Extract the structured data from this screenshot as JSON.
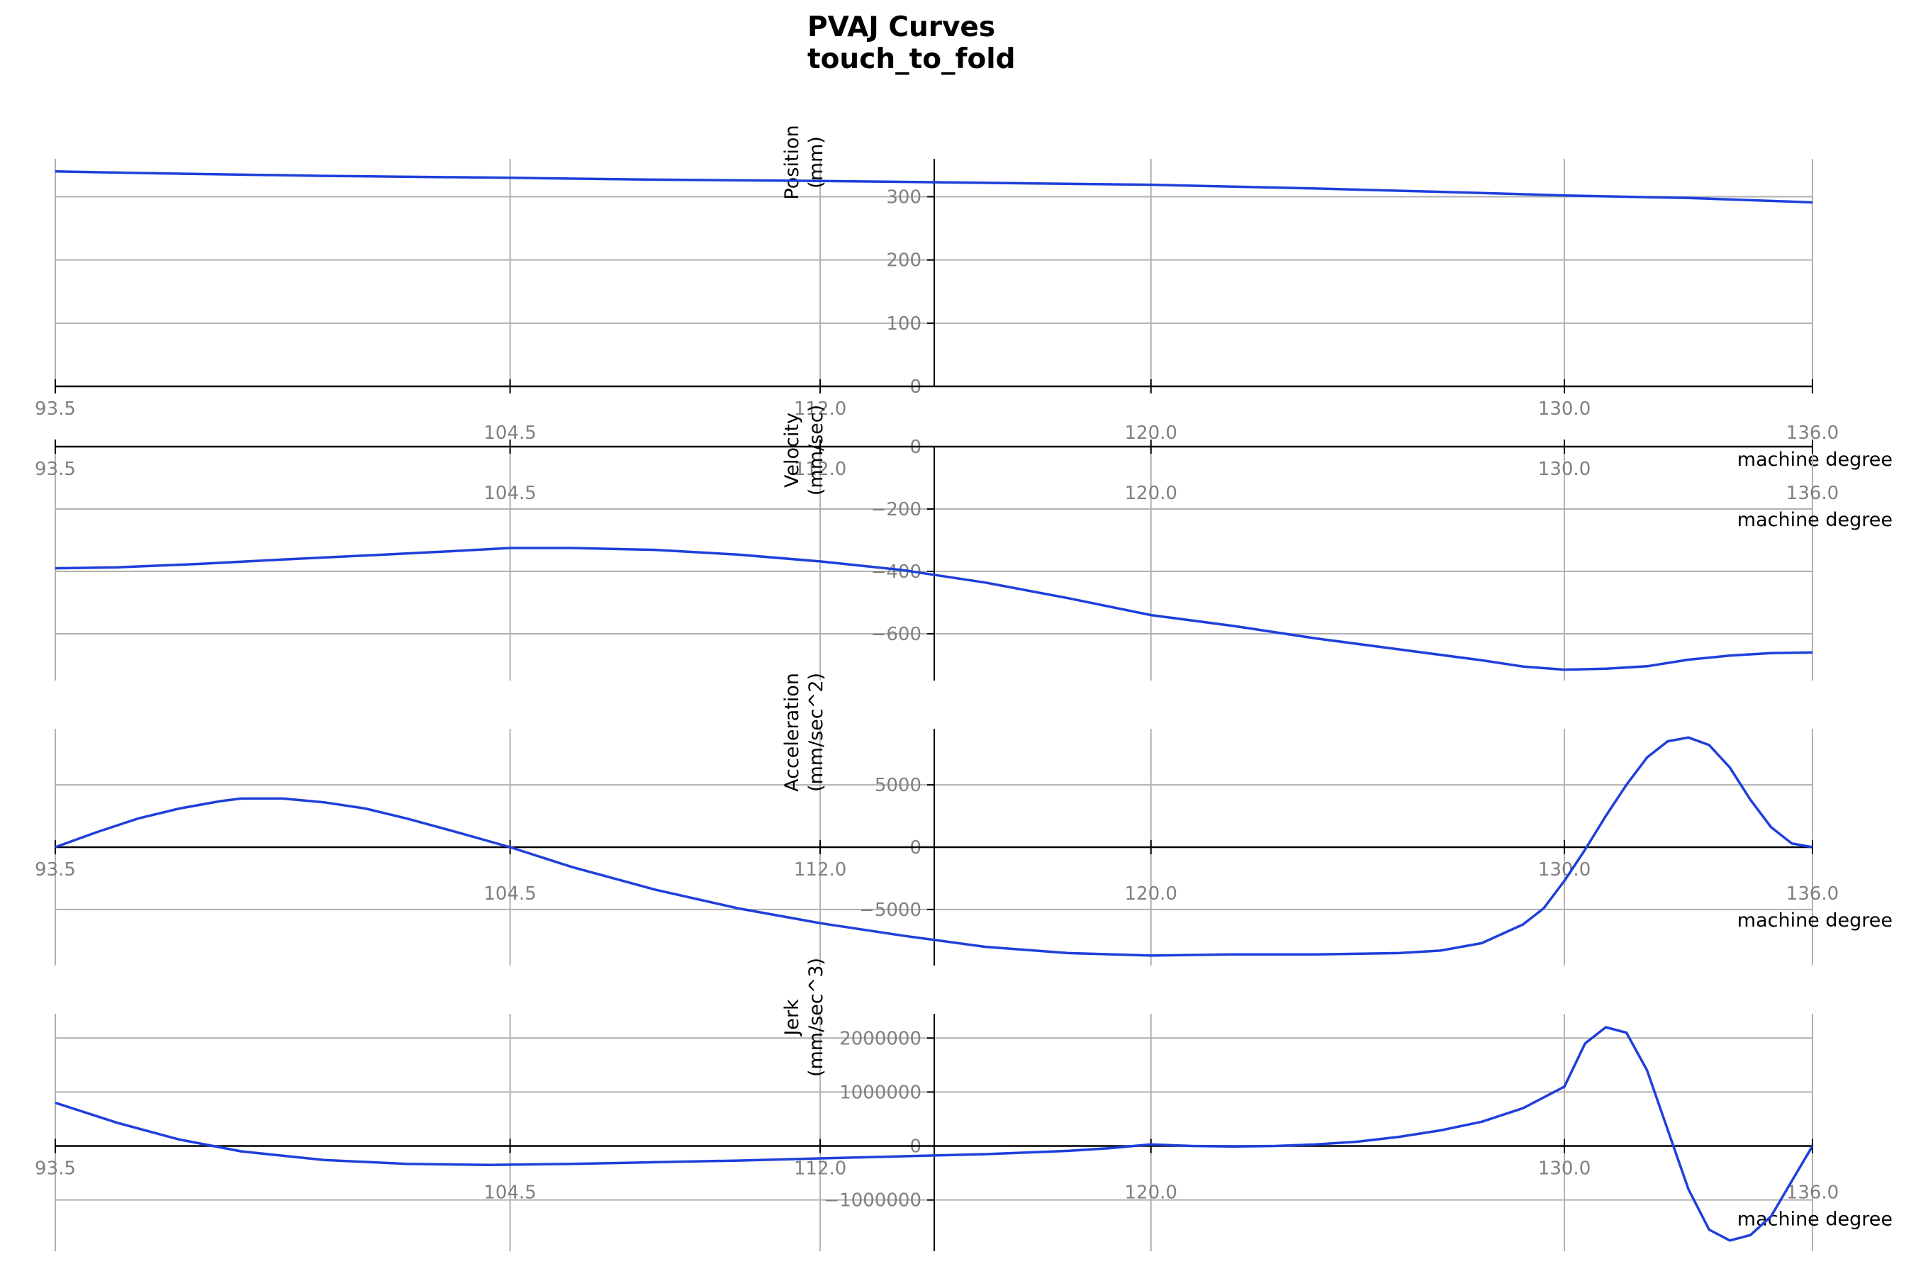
{
  "figure": {
    "title_line1": "PVAJ Curves",
    "title_line2": "touch_to_fold",
    "line_color": "#1f3fdb",
    "grid_color": "#b0b0b0",
    "tick_color": "#808080"
  },
  "chart_data": [
    {
      "type": "line",
      "ylabel": "Position\n(mm)",
      "xlabel": "machine degree",
      "xlim": [
        93.5,
        136.0
      ],
      "ylim": [
        0,
        360
      ],
      "x_ticks": [
        "93.5",
        "104.5",
        "112.0",
        "120.0",
        "130.0",
        "136.0"
      ],
      "y_ticks": [
        "0",
        "100",
        "200",
        "300"
      ],
      "grid": true,
      "series": [
        {
          "x": [
            93.5,
            96,
            100,
            104.5,
            108,
            112,
            116,
            120,
            124,
            128,
            130,
            133,
            136
          ],
          "y": [
            340,
            337,
            333,
            330,
            327,
            325,
            322,
            319,
            313,
            306,
            302,
            298,
            291
          ]
        }
      ]
    },
    {
      "type": "line",
      "ylabel": "Velocity\n(mm/sec)",
      "xlabel": "machine degree",
      "xlim": [
        93.5,
        136.0
      ],
      "ylim": [
        -750,
        0
      ],
      "x_ticks": [
        "93.5",
        "104.5",
        "112.0",
        "120.0",
        "130.0",
        "136.0"
      ],
      "y_ticks": [
        "0",
        "−200",
        "−400",
        "−600"
      ],
      "grid": true,
      "series": [
        {
          "x": [
            93.5,
            95,
            97,
            99,
            101,
            103,
            104.5,
            106,
            108,
            110,
            112,
            114,
            116,
            118,
            120,
            122,
            124,
            126,
            128,
            129,
            130,
            131,
            132,
            133,
            134,
            135,
            136
          ],
          "y": [
            -390,
            -387,
            -376,
            -362,
            -349,
            -336,
            -325,
            -325,
            -331,
            -346,
            -368,
            -396,
            -436,
            -486,
            -540,
            -575,
            -615,
            -650,
            -685,
            -705,
            -715,
            -712,
            -704,
            -683,
            -670,
            -662,
            -660
          ]
        }
      ]
    },
    {
      "type": "line",
      "ylabel": "Acceleration\n(mm/sec^2)",
      "xlabel": "machine degree",
      "xlim": [
        93.5,
        136.0
      ],
      "ylim": [
        -9500,
        9500
      ],
      "x_ticks": [
        "93.5",
        "104.5",
        "112.0",
        "120.0",
        "130.0",
        "136.0"
      ],
      "y_ticks": [
        "5000",
        "0",
        "−5000"
      ],
      "grid": true,
      "series": [
        {
          "x": [
            93.5,
            94.5,
            95.5,
            96.5,
            97.5,
            98,
            99,
            100,
            101,
            102,
            103,
            104.5,
            106,
            108,
            110,
            112,
            114,
            116,
            118,
            120,
            122,
            124,
            126,
            127,
            128,
            129,
            129.5,
            130,
            130.5,
            131,
            131.5,
            132,
            132.5,
            133,
            133.5,
            134,
            134.5,
            135,
            135.5,
            136
          ],
          "y": [
            0,
            1200,
            2300,
            3100,
            3700,
            3900,
            3900,
            3600,
            3100,
            2300,
            1400,
            0,
            -1600,
            -3400,
            -4900,
            -6100,
            -7100,
            -8000,
            -8500,
            -8700,
            -8600,
            -8600,
            -8500,
            -8300,
            -7700,
            -6200,
            -4900,
            -2700,
            -200,
            2500,
            5000,
            7200,
            8500,
            8800,
            8200,
            6400,
            3800,
            1600,
            300,
            0
          ]
        }
      ]
    },
    {
      "type": "line",
      "ylabel": "Jerk\n(mm/sec^3)",
      "xlabel": "machine degree",
      "xlim": [
        93.5,
        136.0
      ],
      "ylim": [
        -1950000,
        2450000
      ],
      "x_ticks": [
        "93.5",
        "104.5",
        "112.0",
        "120.0",
        "130.0",
        "136.0"
      ],
      "y_ticks": [
        "2000000",
        "1000000",
        "0",
        "−1000000"
      ],
      "grid": true,
      "series": [
        {
          "x": [
            93.5,
            95,
            96.5,
            98,
            100,
            102,
            104,
            106,
            108,
            110,
            112,
            114,
            116,
            118,
            119,
            120,
            121,
            122,
            123,
            124,
            125,
            126,
            127,
            128,
            129,
            130,
            130.5,
            131,
            131.5,
            132,
            132.5,
            133,
            133.5,
            134,
            134.5,
            135,
            135.5,
            136
          ],
          "y": [
            800000,
            430000,
            120000,
            -100000,
            -260000,
            -330000,
            -350000,
            -330000,
            -300000,
            -270000,
            -230000,
            -190000,
            -150000,
            -90000,
            -40000,
            30000,
            0,
            -10000,
            0,
            30000,
            80000,
            170000,
            290000,
            450000,
            700000,
            1100000,
            1900000,
            2200000,
            2100000,
            1400000,
            300000,
            -800000,
            -1550000,
            -1750000,
            -1650000,
            -1300000,
            -650000,
            0
          ]
        }
      ]
    }
  ]
}
